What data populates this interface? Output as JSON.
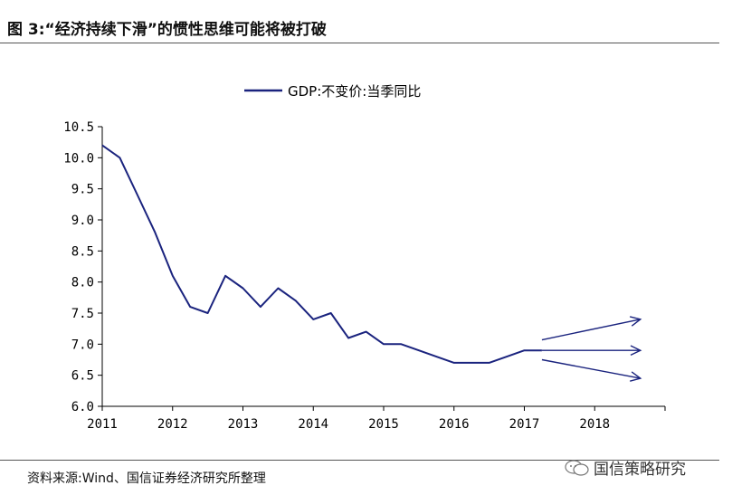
{
  "header": {
    "title": "图 3:“经济持续下滑”的惯性思维可能将被打破"
  },
  "footer": {
    "source": "资料来源:Wind、国信证券经济研究所整理",
    "watermark": "国信策略研究",
    "watermark_icon": "wechat-icon"
  },
  "colors": {
    "series": "#1a237e",
    "axis": "#000000"
  },
  "chart_data": {
    "type": "line",
    "title": "",
    "xlabel": "",
    "ylabel": "",
    "ylim": [
      6.0,
      10.5
    ],
    "xlim": [
      2011.0,
      2019.0
    ],
    "yticks": [
      6.0,
      6.5,
      7.0,
      7.5,
      8.0,
      8.5,
      9.0,
      9.5,
      10.0,
      10.5
    ],
    "ytick_labels": [
      "6.0",
      "6.5",
      "7.0",
      "7.5",
      "8.0",
      "8.5",
      "9.0",
      "9.5",
      "10.0",
      "10.5"
    ],
    "xticks": [
      2011,
      2012,
      2013,
      2014,
      2015,
      2016,
      2017,
      2018
    ],
    "xtick_labels": [
      "2011",
      "2012",
      "2013",
      "2014",
      "2015",
      "2016",
      "2017",
      "2018"
    ],
    "legend": {
      "position": "top-center",
      "entries": [
        "GDP:不变价:当季同比"
      ]
    },
    "series": [
      {
        "name": "GDP:不变价:当季同比",
        "x": [
          2011.0,
          2011.25,
          2011.5,
          2011.75,
          2012.0,
          2012.25,
          2012.5,
          2012.75,
          2013.0,
          2013.25,
          2013.5,
          2013.75,
          2014.0,
          2014.25,
          2014.5,
          2014.75,
          2015.0,
          2015.25,
          2015.5,
          2015.75,
          2016.0,
          2016.25,
          2016.5,
          2016.75,
          2017.0,
          2017.25
        ],
        "values": [
          10.2,
          10.0,
          9.4,
          8.8,
          8.1,
          7.6,
          7.5,
          8.1,
          7.9,
          7.6,
          7.9,
          7.7,
          7.4,
          7.5,
          7.1,
          7.2,
          7.0,
          7.0,
          6.9,
          6.8,
          6.7,
          6.7,
          6.7,
          6.8,
          6.9,
          6.9
        ]
      }
    ],
    "annotations": [
      {
        "type": "arrow",
        "from": [
          2017.25,
          7.07
        ],
        "to": [
          2018.65,
          7.4
        ],
        "meaning": "upward scenario"
      },
      {
        "type": "arrow",
        "from": [
          2017.25,
          6.9
        ],
        "to": [
          2018.65,
          6.9
        ],
        "meaning": "flat scenario"
      },
      {
        "type": "arrow",
        "from": [
          2017.25,
          6.75
        ],
        "to": [
          2018.65,
          6.45
        ],
        "meaning": "downward scenario"
      }
    ]
  }
}
